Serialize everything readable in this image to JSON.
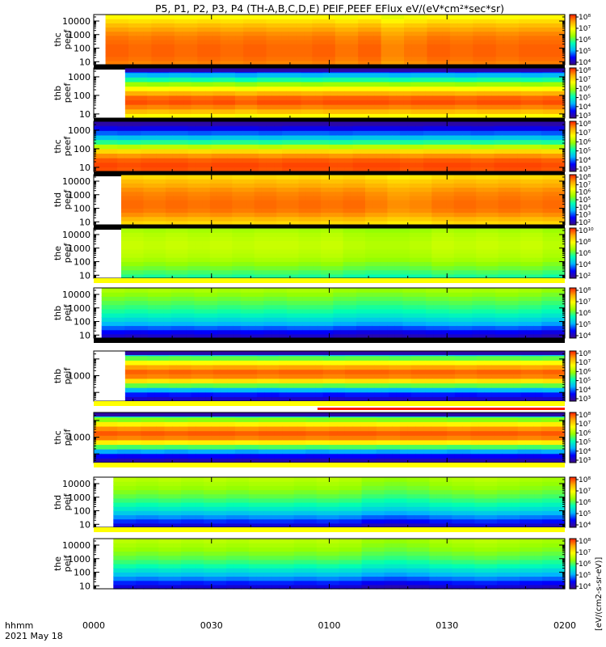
{
  "chart_data": {
    "type": "heatmap",
    "title": "P5, P1, P2, P3, P4 (TH-A,B,C,D,E) PEIF,PEEF EFlux eV/(eV*cm²*sec*sr)",
    "colorbar_label": "[eV/(cm2-s-sr-eV)]",
    "x_label_lines": [
      "hhmm",
      "2021 May 18"
    ],
    "x_ticks": [
      "0000",
      "0030",
      "0100",
      "0130",
      "0200"
    ],
    "x_range_minutes": [
      0,
      120
    ],
    "y_scale": "log",
    "colormap": [
      "#3c0a82",
      "#0000ff",
      "#00b4ff",
      "#00ffb4",
      "#96ff00",
      "#ffff00",
      "#ffa500",
      "#ff1e00"
    ],
    "panels": [
      {
        "label": [
          "thc",
          "peef"
        ],
        "y_range": [
          6,
          30000
        ],
        "y_ticks": [
          "10",
          "100",
          "1000",
          "10000"
        ],
        "cb_ticks": [
          "10⁴",
          "10⁵",
          "10⁶",
          "10⁷",
          "10⁸"
        ],
        "data_start_minute": 3,
        "energy_profile": [
          0.9,
          0.92,
          0.93,
          0.93,
          0.93,
          0.92,
          0.91,
          0.89,
          0.86,
          0.82,
          0.77,
          0.72
        ],
        "time_modulation": [
          0.0,
          0.01,
          0.0,
          0.01,
          0.0,
          0.01,
          0.0,
          0.01,
          0.01,
          0.0,
          0.02,
          0.0,
          0.04,
          0.02,
          0.0,
          0.01,
          0.0,
          0.01,
          0.0,
          0.0
        ],
        "top_dark_band": false
      },
      {
        "label": [
          "thb",
          "peef"
        ],
        "y_range": [
          6,
          3000
        ],
        "y_ticks": [
          "10",
          "100",
          "1000"
        ],
        "cb_ticks": [
          "10³",
          "10⁴",
          "10⁵",
          "10⁶",
          "10⁷",
          "10⁸"
        ],
        "data_start_minute": 8,
        "energy_profile": [
          0.72,
          0.82,
          0.9,
          0.95,
          0.93,
          0.84,
          0.72,
          0.58,
          0.45,
          0.3,
          0.18
        ],
        "time_modulation": [
          0.0,
          0.01,
          0.0,
          0.01,
          0.0,
          0.02,
          0.0,
          0.0,
          0.01,
          0.0,
          0.0,
          0.0,
          0.01,
          0.0,
          0.0,
          0.01,
          0.0,
          0.0,
          0.01,
          0.0
        ],
        "top_dark_band": true
      },
      {
        "label": [
          "thc",
          "peef"
        ],
        "y_range": [
          6,
          3000
        ],
        "y_ticks": [
          "10",
          "100",
          "1000"
        ],
        "cb_ticks": [
          "10³",
          "10⁴",
          "10⁵",
          "10⁶",
          "10⁷",
          "10⁸"
        ],
        "data_start_minute": 0,
        "energy_profile": [
          0.95,
          0.96,
          0.94,
          0.88,
          0.78,
          0.62,
          0.46,
          0.32,
          0.22,
          0.12,
          0.06
        ],
        "time_modulation": [
          0.0,
          0.01,
          0.0,
          0.0,
          0.01,
          0.0,
          0.0,
          0.01,
          0.0,
          0.0,
          0.01,
          0.0,
          0.0,
          0.01,
          0.0,
          0.0,
          0.01,
          0.0,
          0.0,
          0.01
        ],
        "top_dark_band": true
      },
      {
        "label": [
          "thd",
          "peef"
        ],
        "y_range": [
          6,
          30000
        ],
        "y_ticks": [
          "10",
          "100",
          "1000",
          "10000"
        ],
        "cb_ticks": [
          "10²",
          "10³",
          "10⁴",
          "10⁵",
          "10⁶",
          "10⁷",
          "10⁸"
        ],
        "data_start_minute": 7,
        "energy_profile": [
          0.78,
          0.83,
          0.88,
          0.91,
          0.92,
          0.92,
          0.91,
          0.9,
          0.88,
          0.85,
          0.82,
          0.78
        ],
        "time_modulation": [
          0.0,
          0.01,
          0.0,
          0.01,
          0.0,
          0.01,
          0.0,
          0.01,
          0.0,
          0.01,
          0.0,
          0.02,
          0.04,
          0.03,
          0.01,
          0.0,
          0.01,
          0.0,
          0.01,
          0.0
        ],
        "top_dark_band": false
      },
      {
        "label": [
          "the",
          "peef"
        ],
        "y_range": [
          6,
          30000
        ],
        "y_ticks": [
          "10",
          "100",
          "1000",
          "10000"
        ],
        "cb_ticks": [
          "10²",
          "10⁴",
          "10⁶",
          "10⁸",
          "10¹⁰"
        ],
        "data_start_minute": 7,
        "energy_profile": [
          0.46,
          0.5,
          0.54,
          0.57,
          0.6,
          0.62,
          0.63,
          0.64,
          0.64,
          0.63,
          0.62,
          0.6
        ],
        "time_modulation": [
          0.0,
          0.01,
          0.0,
          0.01,
          0.0,
          0.01,
          0.0,
          0.0,
          0.01,
          0.0,
          0.02,
          0.03,
          0.03,
          0.02,
          0.0,
          0.01,
          0.0,
          0.01,
          0.0,
          0.02
        ],
        "top_dark_band": false
      },
      {
        "label": [
          "thb",
          "peif"
        ],
        "y_range": [
          6,
          30000
        ],
        "y_ticks": [
          "10",
          "100",
          "1000",
          "10000"
        ],
        "cb_ticks": [
          "10⁴",
          "10⁵",
          "10⁶",
          "10⁷",
          "10⁸"
        ],
        "data_start_minute": 2,
        "energy_profile": [
          0.08,
          0.14,
          0.22,
          0.3,
          0.36,
          0.41,
          0.45,
          0.48,
          0.51,
          0.54,
          0.57,
          0.6
        ],
        "time_modulation": [
          0.0,
          0.01,
          0.0,
          0.01,
          0.0,
          0.01,
          0.0,
          0.01,
          0.0,
          0.0,
          0.02,
          0.03,
          0.03,
          0.02,
          0.01,
          0.0,
          0.01,
          0.0,
          0.01,
          0.03
        ],
        "top_dark_band": false
      },
      {
        "label": [
          "thb",
          "peif"
        ],
        "y_range": [
          30,
          30000
        ],
        "y_ticks": [
          "1000"
        ],
        "cb_ticks": [
          "10³",
          "10⁴",
          "10⁵",
          "10⁶",
          "10⁷",
          "10⁸"
        ],
        "data_start_minute": 8,
        "energy_profile": [
          0.08,
          0.16,
          0.3,
          0.52,
          0.76,
          0.9,
          0.93,
          0.86,
          0.72,
          0.52,
          0.3
        ],
        "time_modulation": [
          0.0,
          0.01,
          0.0,
          0.01,
          0.0,
          0.0,
          0.01,
          0.0,
          0.0,
          0.01,
          0.0,
          0.0,
          0.01,
          0.0,
          0.0,
          0.01,
          0.0,
          0.0,
          0.01,
          0.0
        ],
        "top_dark_band": true
      },
      {
        "label": [
          "thc",
          "peif"
        ],
        "y_range": [
          30,
          30000
        ],
        "y_ticks": [
          "1000"
        ],
        "cb_ticks": [
          "10³",
          "10⁴",
          "10⁵",
          "10⁶",
          "10⁷",
          "10⁸"
        ],
        "data_start_minute": 0,
        "energy_profile": [
          0.06,
          0.14,
          0.28,
          0.5,
          0.74,
          0.9,
          0.94,
          0.88,
          0.74,
          0.56,
          0.38
        ],
        "time_modulation": [
          0.0,
          0.01,
          0.0,
          0.01,
          0.0,
          0.0,
          0.01,
          0.0,
          0.0,
          0.01,
          0.0,
          0.0,
          0.01,
          0.0,
          0.0,
          0.01,
          0.0,
          0.0,
          0.01,
          0.0
        ],
        "top_dark_band": true
      },
      {
        "label": [
          "thd",
          "peif"
        ],
        "y_range": [
          6,
          30000
        ],
        "y_ticks": [
          "10",
          "100",
          "1000",
          "10000"
        ],
        "cb_ticks": [
          "10⁴",
          "10⁵",
          "10⁶",
          "10⁷",
          "10⁸"
        ],
        "data_start_minute": 5,
        "energy_profile": [
          0.1,
          0.18,
          0.26,
          0.33,
          0.39,
          0.44,
          0.48,
          0.52,
          0.55,
          0.58,
          0.6,
          0.62
        ],
        "time_modulation": [
          0.0,
          0.01,
          0.0,
          0.01,
          0.0,
          0.01,
          0.0,
          0.0,
          0.01,
          0.0,
          0.01,
          0.04,
          0.05,
          0.04,
          0.02,
          0.01,
          0.0,
          0.01,
          0.02,
          0.03
        ],
        "top_dark_band": false
      },
      {
        "label": [
          "the",
          "peif"
        ],
        "y_range": [
          6,
          30000
        ],
        "y_ticks": [
          "10",
          "100",
          "1000",
          "10000"
        ],
        "cb_ticks": [
          "10⁴",
          "10⁵",
          "10⁶",
          "10⁷",
          "10⁸"
        ],
        "data_start_minute": 5,
        "energy_profile": [
          0.1,
          0.17,
          0.25,
          0.32,
          0.38,
          0.44,
          0.48,
          0.52,
          0.55,
          0.58,
          0.6,
          0.62
        ],
        "time_modulation": [
          0.0,
          0.01,
          0.0,
          0.01,
          0.0,
          0.01,
          0.0,
          0.0,
          0.01,
          0.0,
          0.01,
          0.04,
          0.05,
          0.04,
          0.02,
          0.01,
          0.0,
          0.01,
          0.02,
          0.03
        ],
        "top_dark_band": false
      }
    ],
    "separator_colors": [
      "#000000",
      "#000000",
      "#000000",
      "#000000",
      "#ffff00",
      "#000000",
      "#ffff00",
      "#ffff00",
      "#ffff00"
    ]
  }
}
